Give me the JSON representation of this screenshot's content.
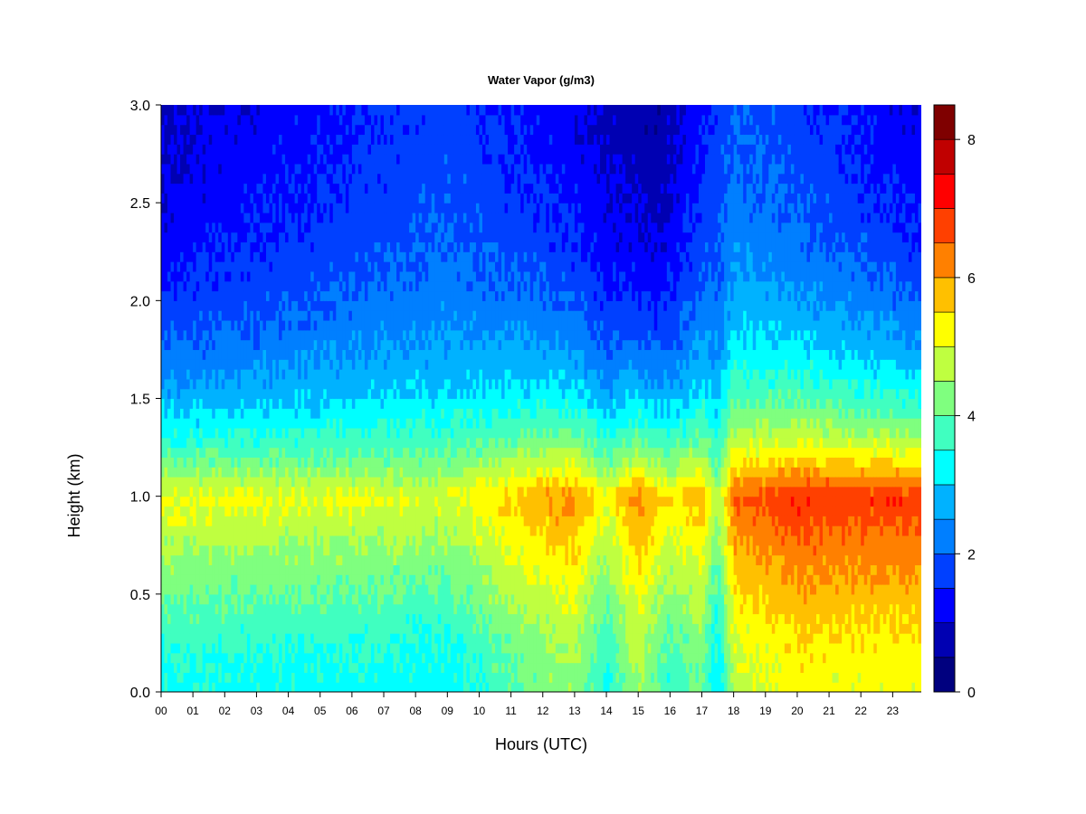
{
  "chart_data": {
    "type": "heatmap",
    "title": "Water Vapor (g/m3)",
    "xlabel": "Hours (UTC)",
    "ylabel": "Height (km)",
    "x_ticks": [
      "00",
      "01",
      "02",
      "03",
      "04",
      "05",
      "06",
      "07",
      "08",
      "09",
      "10",
      "11",
      "12",
      "13",
      "14",
      "15",
      "16",
      "17",
      "18",
      "19",
      "20",
      "21",
      "22",
      "23"
    ],
    "y_ticks": [
      "0.0",
      "0.5",
      "1.0",
      "1.5",
      "2.0",
      "2.5",
      "3.0"
    ],
    "xlim": [
      0,
      23.9
    ],
    "ylim": [
      0.0,
      3.0
    ],
    "colorbar": {
      "ticks": [
        "0",
        "2",
        "4",
        "6",
        "8"
      ],
      "range": [
        0,
        8.5
      ],
      "levels": [
        0,
        0.5,
        1,
        1.5,
        2,
        2.5,
        3,
        3.5,
        4,
        4.5,
        5,
        5.5,
        6,
        6.5,
        7,
        7.5,
        8,
        8.5
      ],
      "colors": [
        "#00007f",
        "#0000b2",
        "#0000ff",
        "#0040ff",
        "#007fff",
        "#00b2ff",
        "#00ffff",
        "#40ffc0",
        "#7fff7f",
        "#bfff40",
        "#ffff00",
        "#ffc000",
        "#ff8000",
        "#ff4000",
        "#ff0000",
        "#c00000",
        "#7f0000"
      ]
    },
    "z_at_1km_by_hour": [
      {
        "hour": 0,
        "z": 5.2
      },
      {
        "hour": 3,
        "z": 5.1
      },
      {
        "hour": 6,
        "z": 5.1
      },
      {
        "hour": 9,
        "z": 5.0
      },
      {
        "hour": 12,
        "z": 6.0
      },
      {
        "hour": 13,
        "z": 6.2
      },
      {
        "hour": 14,
        "z": 5.2
      },
      {
        "hour": 15,
        "z": 6.3
      },
      {
        "hour": 16,
        "z": 5.4
      },
      {
        "hour": 17,
        "z": 5.9
      },
      {
        "hour": 17.5,
        "z": 4.6
      },
      {
        "hour": 18,
        "z": 6.5
      },
      {
        "hour": 20,
        "z": 7.0
      },
      {
        "hour": 22,
        "z": 6.9
      },
      {
        "hour": 23.9,
        "z": 6.9
      }
    ],
    "z_at_3km_by_hour": [
      {
        "hour": 0,
        "z": 0.7
      },
      {
        "hour": 9,
        "z": 1.6
      },
      {
        "hour": 12,
        "z": 1.1
      },
      {
        "hour": 15.5,
        "z": 0.3
      },
      {
        "hour": 18,
        "z": 1.8
      },
      {
        "hour": 23.9,
        "z": 0.8
      }
    ]
  }
}
